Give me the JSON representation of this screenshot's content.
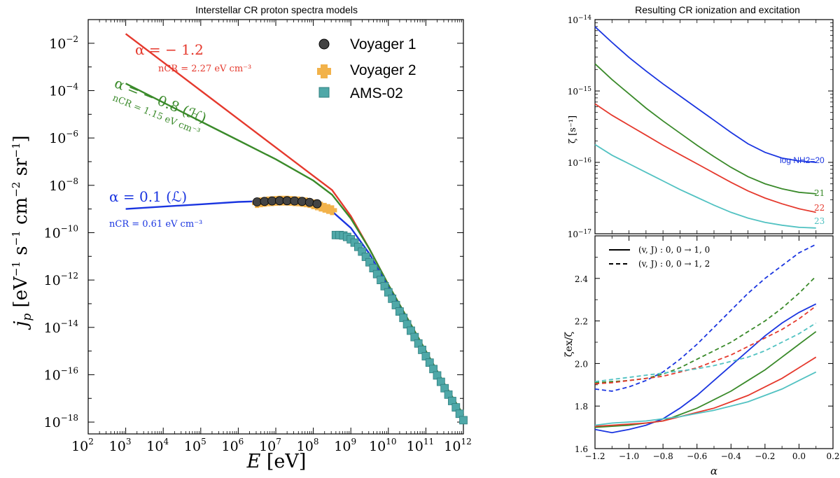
{
  "chart_data": [
    {
      "type": "line",
      "id": "left",
      "title": "Interstellar CR proton spectra models",
      "xlabel": "E [eV]",
      "ylabel": "j_p [eV^-1 s^-1 cm^-2 sr^-1]",
      "xscale": "log",
      "yscale": "log",
      "xlim_exp": [
        2,
        12
      ],
      "ylim_exp": [
        -18.5,
        -1
      ],
      "xtick_exps": [
        2,
        3,
        4,
        5,
        6,
        7,
        8,
        9,
        10,
        11,
        12
      ],
      "ytick_exps": [
        -18,
        -16,
        -14,
        -12,
        -10,
        -8,
        -6,
        -4,
        -2
      ],
      "series": [
        {
          "name": "alpha=-1.2",
          "color": "#e5392d",
          "logx": [
            3,
            4,
            5,
            6,
            7,
            8,
            8.5,
            9,
            9.5,
            10,
            10.5,
            11,
            11.5,
            12
          ],
          "logy": [
            -1.6,
            -2.8,
            -4.0,
            -5.2,
            -6.4,
            -7.6,
            -8.2,
            -9.3,
            -10.7,
            -12.2,
            -13.6,
            -15.0,
            -16.4,
            -17.7
          ]
        },
        {
          "name": "alpha=-0.8",
          "color": "#3a8a2a",
          "logx": [
            3,
            4,
            5,
            6,
            7,
            8,
            8.5,
            9,
            9.5,
            10,
            10.5,
            11,
            11.5,
            12
          ],
          "logy": [
            -3.7,
            -4.5,
            -5.3,
            -6.1,
            -6.9,
            -7.8,
            -8.4,
            -9.4,
            -10.7,
            -12.2,
            -13.6,
            -15.0,
            -16.4,
            -17.7
          ]
        },
        {
          "name": "alpha=0.1",
          "color": "#1a35e0",
          "logx": [
            3,
            4,
            5,
            6,
            7,
            7.5,
            8,
            8.5,
            9,
            9.5,
            10,
            10.5,
            11,
            11.5,
            12
          ],
          "logy": [
            -9.0,
            -8.9,
            -8.8,
            -8.7,
            -8.65,
            -8.65,
            -8.75,
            -9.1,
            -9.8,
            -10.9,
            -12.3,
            -13.7,
            -15.1,
            -16.5,
            -17.8
          ]
        }
      ],
      "voyager1": {
        "logx": [
          6.5,
          6.7,
          6.9,
          7.1,
          7.3,
          7.5,
          7.7,
          7.9,
          8.1
        ],
        "logy": [
          -8.7,
          -8.68,
          -8.66,
          -8.65,
          -8.65,
          -8.66,
          -8.68,
          -8.72,
          -8.78
        ]
      },
      "voyager2": {
        "logx": [
          6.5,
          6.6,
          6.7,
          6.8,
          6.9,
          7.0,
          7.1,
          7.2,
          7.3,
          7.4,
          7.5,
          7.6,
          7.7,
          7.8,
          7.9,
          8.0,
          8.1,
          8.2,
          8.3,
          8.4,
          8.5
        ],
        "logy": [
          -8.75,
          -8.72,
          -8.7,
          -8.68,
          -8.67,
          -8.66,
          -8.65,
          -8.65,
          -8.65,
          -8.66,
          -8.67,
          -8.68,
          -8.7,
          -8.72,
          -8.75,
          -8.8,
          -8.85,
          -8.9,
          -8.95,
          -9.0,
          -9.05
        ]
      },
      "ams02": {
        "logx": [
          8.6,
          8.7,
          8.8,
          8.9,
          9.0,
          9.1,
          9.2,
          9.3,
          9.4,
          9.5,
          9.6,
          9.7,
          9.8,
          9.9,
          10.0,
          10.1,
          10.2,
          10.3,
          10.4,
          10.5,
          10.6,
          10.7,
          10.8,
          10.9,
          11.0,
          11.1,
          11.2,
          11.3,
          11.4,
          11.5,
          11.6,
          11.7,
          11.8,
          11.9,
          12.0
        ],
        "logy": [
          -10.1,
          -10.1,
          -10.12,
          -10.18,
          -10.28,
          -10.42,
          -10.6,
          -10.8,
          -11.02,
          -11.25,
          -11.5,
          -11.75,
          -12.0,
          -12.26,
          -12.52,
          -12.79,
          -13.06,
          -13.33,
          -13.6,
          -13.87,
          -14.14,
          -14.41,
          -14.68,
          -14.95,
          -15.22,
          -15.49,
          -15.76,
          -16.03,
          -16.3,
          -16.57,
          -16.84,
          -17.11,
          -17.38,
          -17.65,
          -17.92
        ]
      },
      "legend": {
        "placement": "top-right",
        "entries": [
          "Voyager 1",
          "Voyager 2",
          "AMS-02"
        ]
      },
      "annotations": [
        {
          "id": "a1",
          "text": "α = − 1.2",
          "color": "#e5392d"
        },
        {
          "id": "n1",
          "text": "nCR = 2.27 eV cm⁻³",
          "color": "#e5392d"
        },
        {
          "id": "a2",
          "text": "α = − 0.8 (ℋ)",
          "color": "#3a8a2a"
        },
        {
          "id": "n2",
          "text": "nCR = 1.15 eV cm⁻³",
          "color": "#3a8a2a"
        },
        {
          "id": "a3",
          "text": "α = 0.1 (ℒ)",
          "color": "#1a35e0"
        },
        {
          "id": "n3",
          "text": "nCR = 0.61 eV cm⁻³",
          "color": "#1a35e0"
        }
      ]
    },
    {
      "type": "line",
      "id": "right_top",
      "title": "Resulting CR ionization and excitation",
      "ylabel": "ζ [s⁻¹]",
      "yscale": "log",
      "xlim": [
        -1.2,
        0.2
      ],
      "ylim_exp": [
        -17,
        -14
      ],
      "ytick_exps": [
        -17,
        -16,
        -15,
        -14
      ],
      "series": [
        {
          "name": "log NH2=20",
          "color": "#1a35e0",
          "x": [
            -1.2,
            -1.1,
            -1.0,
            -0.9,
            -0.8,
            -0.7,
            -0.6,
            -0.5,
            -0.4,
            -0.3,
            -0.2,
            -0.1,
            0.0,
            0.1
          ],
          "logy": [
            -14.1,
            -14.32,
            -14.53,
            -14.72,
            -14.9,
            -15.07,
            -15.24,
            -15.41,
            -15.58,
            -15.74,
            -15.86,
            -15.94,
            -15.98,
            -16.0
          ]
        },
        {
          "name": "21",
          "color": "#3a8a2a",
          "x": [
            -1.2,
            -1.1,
            -1.0,
            -0.9,
            -0.8,
            -0.7,
            -0.6,
            -0.5,
            -0.4,
            -0.3,
            -0.2,
            -0.1,
            0.0,
            0.1
          ],
          "logy": [
            -14.62,
            -14.84,
            -15.04,
            -15.24,
            -15.42,
            -15.59,
            -15.76,
            -15.92,
            -16.07,
            -16.2,
            -16.3,
            -16.37,
            -16.42,
            -16.44
          ]
        },
        {
          "name": "22",
          "color": "#e5392d",
          "x": [
            -1.2,
            -1.1,
            -1.0,
            -0.9,
            -0.8,
            -0.7,
            -0.6,
            -0.5,
            -0.4,
            -0.3,
            -0.2,
            -0.1,
            0.0,
            0.1
          ],
          "logy": [
            -15.18,
            -15.34,
            -15.48,
            -15.62,
            -15.76,
            -15.89,
            -16.02,
            -16.15,
            -16.28,
            -16.4,
            -16.5,
            -16.58,
            -16.65,
            -16.7
          ]
        },
        {
          "name": "23",
          "color": "#52c2c2",
          "x": [
            -1.2,
            -1.1,
            -1.0,
            -0.9,
            -0.8,
            -0.7,
            -0.6,
            -0.5,
            -0.4,
            -0.3,
            -0.2,
            -0.1,
            0.0,
            0.1
          ],
          "logy": [
            -15.75,
            -15.9,
            -16.02,
            -16.14,
            -16.26,
            -16.38,
            -16.49,
            -16.6,
            -16.7,
            -16.78,
            -16.84,
            -16.88,
            -16.91,
            -16.92
          ]
        }
      ],
      "labels": [
        {
          "text": "log NH2=20",
          "color": "#1a35e0"
        },
        {
          "text": "21",
          "color": "#3a8a2a"
        },
        {
          "text": "22",
          "color": "#e5392d"
        },
        {
          "text": "23",
          "color": "#52c2c2"
        }
      ]
    },
    {
      "type": "line",
      "id": "right_bottom",
      "xlabel": "α",
      "ylabel": "ζex/ζ",
      "xlim": [
        -1.2,
        0.2
      ],
      "ylim": [
        1.6,
        2.6
      ],
      "xticks": [
        "−1.2",
        "−1.0",
        "−0.8",
        "−0.6",
        "−0.4",
        "−0.2",
        "0.0",
        "0.2"
      ],
      "yticks": [
        "1.6",
        "1.8",
        "2.0",
        "2.2",
        "2.4"
      ],
      "legend": {
        "placement": "top-left",
        "entries": [
          "(v, J) : 0, 0 → 1, 0",
          "(v, J) : 0, 0 → 1, 2"
        ]
      },
      "series": [
        {
          "name": "blue solid",
          "color": "#1a35e0",
          "style": "solid",
          "x": [
            -1.2,
            -1.1,
            -1.0,
            -0.9,
            -0.8,
            -0.7,
            -0.6,
            -0.5,
            -0.4,
            -0.3,
            -0.2,
            -0.1,
            0.0,
            0.1
          ],
          "y": [
            1.69,
            1.675,
            1.69,
            1.71,
            1.74,
            1.79,
            1.85,
            1.92,
            1.99,
            2.06,
            2.13,
            2.19,
            2.24,
            2.28
          ]
        },
        {
          "name": "green solid",
          "color": "#3a8a2a",
          "style": "solid",
          "x": [
            -1.2,
            -1.1,
            -1.0,
            -0.9,
            -0.8,
            -0.7,
            -0.6,
            -0.5,
            -0.4,
            -0.3,
            -0.2,
            -0.1,
            0.0,
            0.1
          ],
          "y": [
            1.7,
            1.705,
            1.71,
            1.72,
            1.73,
            1.76,
            1.79,
            1.83,
            1.87,
            1.92,
            1.97,
            2.03,
            2.09,
            2.15
          ]
        },
        {
          "name": "red solid",
          "color": "#e5392d",
          "style": "solid",
          "x": [
            -1.2,
            -1.1,
            -1.0,
            -0.9,
            -0.8,
            -0.7,
            -0.6,
            -0.5,
            -0.4,
            -0.3,
            -0.2,
            -0.1,
            0.0,
            0.1
          ],
          "y": [
            1.705,
            1.71,
            1.715,
            1.72,
            1.73,
            1.75,
            1.77,
            1.79,
            1.82,
            1.85,
            1.89,
            1.93,
            1.98,
            2.03
          ]
        },
        {
          "name": "cyan solid",
          "color": "#52c2c2",
          "style": "solid",
          "x": [
            -1.2,
            -1.1,
            -1.0,
            -0.9,
            -0.8,
            -0.7,
            -0.6,
            -0.5,
            -0.4,
            -0.3,
            -0.2,
            -0.1,
            0.0,
            0.1
          ],
          "y": [
            1.71,
            1.72,
            1.725,
            1.73,
            1.74,
            1.75,
            1.765,
            1.78,
            1.8,
            1.82,
            1.85,
            1.88,
            1.92,
            1.96
          ]
        },
        {
          "name": "blue dashed",
          "color": "#1a35e0",
          "style": "dashed",
          "x": [
            -1.2,
            -1.1,
            -1.0,
            -0.9,
            -0.8,
            -0.7,
            -0.6,
            -0.5,
            -0.4,
            -0.3,
            -0.2,
            -0.1,
            0.0,
            0.1
          ],
          "y": [
            1.88,
            1.87,
            1.89,
            1.92,
            1.96,
            2.02,
            2.09,
            2.17,
            2.25,
            2.33,
            2.4,
            2.46,
            2.52,
            2.56
          ]
        },
        {
          "name": "green dashed",
          "color": "#3a8a2a",
          "style": "dashed",
          "x": [
            -1.2,
            -1.1,
            -1.0,
            -0.9,
            -0.8,
            -0.7,
            -0.6,
            -0.5,
            -0.4,
            -0.3,
            -0.2,
            -0.1,
            0.0,
            0.1
          ],
          "y": [
            1.91,
            1.915,
            1.92,
            1.93,
            1.95,
            1.98,
            2.02,
            2.06,
            2.1,
            2.15,
            2.2,
            2.26,
            2.33,
            2.41
          ]
        },
        {
          "name": "red dashed",
          "color": "#e5392d",
          "style": "dashed",
          "x": [
            -1.2,
            -1.1,
            -1.0,
            -0.9,
            -0.8,
            -0.7,
            -0.6,
            -0.5,
            -0.4,
            -0.3,
            -0.2,
            -0.1,
            0.0,
            0.1
          ],
          "y": [
            1.905,
            1.91,
            1.92,
            1.93,
            1.94,
            1.96,
            1.98,
            2.01,
            2.04,
            2.08,
            2.12,
            2.16,
            2.21,
            2.27
          ]
        },
        {
          "name": "cyan dashed",
          "color": "#52c2c2",
          "style": "dashed",
          "x": [
            -1.2,
            -1.1,
            -1.0,
            -0.9,
            -0.8,
            -0.7,
            -0.6,
            -0.5,
            -0.4,
            -0.3,
            -0.2,
            -0.1,
            0.0,
            0.1
          ],
          "y": [
            1.915,
            1.925,
            1.935,
            1.945,
            1.955,
            1.965,
            1.975,
            1.99,
            2.01,
            2.03,
            2.06,
            2.1,
            2.14,
            2.19
          ]
        }
      ]
    }
  ]
}
